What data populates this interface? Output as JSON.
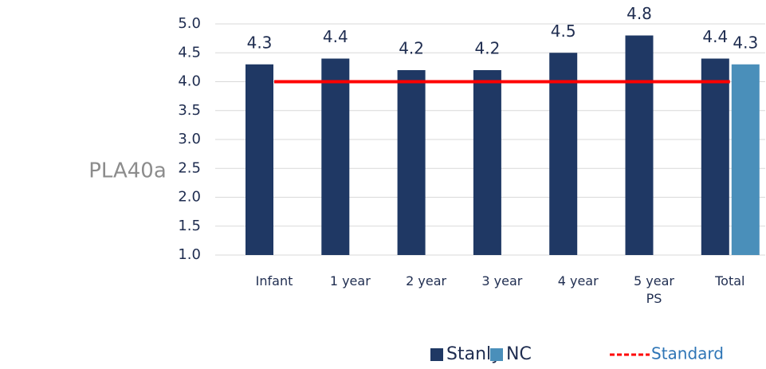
{
  "chart_data": {
    "type": "bar",
    "title": "PLA40a",
    "categories": [
      "Infant",
      "1 year",
      "2 year",
      "3 year",
      "4 year",
      "5 year PS",
      "Total"
    ],
    "series": [
      {
        "name": "Stanly",
        "color": "#1f3864",
        "values": [
          4.3,
          4.4,
          4.2,
          4.2,
          4.5,
          4.8,
          4.4
        ]
      },
      {
        "name": "NC",
        "color": "#4a8fba",
        "values": [
          null,
          null,
          null,
          null,
          null,
          null,
          4.3
        ]
      },
      {
        "name": "Standard",
        "color": "#ff0000",
        "type": "line",
        "values": [
          4,
          4,
          4,
          4,
          4,
          4,
          4
        ]
      }
    ],
    "ylim": [
      1,
      5
    ],
    "yticks": [
      {
        "value": 1,
        "label": "1.0"
      },
      {
        "value": 1.5,
        "label": "1.5"
      },
      {
        "value": 2,
        "label": "2.0"
      },
      {
        "value": 2.5,
        "label": "2.5"
      },
      {
        "value": 3,
        "label": "3.0"
      },
      {
        "value": 3.5,
        "label": "3.5"
      },
      {
        "value": 4,
        "label": "4.0"
      },
      {
        "value": 4.5,
        "label": "4.5"
      },
      {
        "value": 5,
        "label": "5.0"
      }
    ],
    "grid": true,
    "legend": "bottom"
  }
}
